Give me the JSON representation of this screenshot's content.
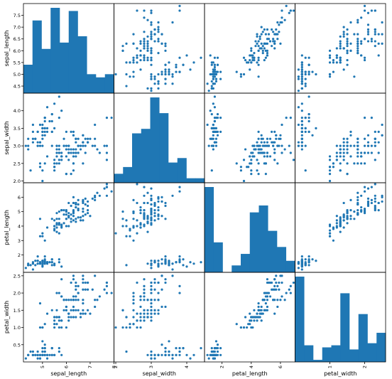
{
  "chart_data": {
    "type": "scatter_matrix",
    "variables": [
      "sepal_length",
      "sepal_width",
      "petal_length",
      "petal_width"
    ],
    "marker_color": "#1f77b4",
    "diagonal": "hist",
    "grid": false,
    "ranges": {
      "sepal_length": [
        4.2,
        8.0
      ],
      "sepal_width": [
        1.95,
        4.5
      ],
      "petal_length": [
        0.8,
        7.0
      ],
      "petal_width": [
        0.0,
        2.6
      ]
    },
    "ticks": {
      "sepal_length": {
        "values": [
          4.5,
          5.0,
          5.5,
          6.0,
          6.5,
          7.0,
          7.5
        ],
        "labels": [
          "4.5",
          "5.0",
          "5.5",
          "6.0",
          "6.5",
          "7.0",
          "7.5"
        ]
      },
      "sepal_width": {
        "values": [
          2.0,
          2.5,
          3.0,
          3.5,
          4.0
        ],
        "labels": [
          "2.0",
          "2.5",
          "3.0",
          "3.5",
          "4.0"
        ]
      },
      "petal_length": {
        "values": [
          2,
          3,
          4,
          5,
          6
        ],
        "labels": [
          "2",
          "3",
          "4",
          "5",
          "6"
        ]
      },
      "petal_width": {
        "values": [
          0.5,
          1.0,
          1.5,
          2.0,
          2.5
        ],
        "labels": [
          "0.5",
          "1.0",
          "1.5",
          "2.0",
          "2.5"
        ]
      }
    },
    "bottom_ticks": {
      "sepal_length": {
        "values": [
          5,
          6,
          7,
          8
        ],
        "labels": [
          "5",
          "6",
          "7",
          "8"
        ]
      },
      "sepal_width": {
        "values": [
          2,
          3,
          4
        ],
        "labels": [
          "2",
          "3",
          "4"
        ]
      },
      "petal_length": {
        "values": [
          2,
          4,
          6
        ],
        "labels": [
          "2",
          "4",
          "6"
        ]
      },
      "petal_width": {
        "values": [
          1,
          2
        ],
        "labels": [
          "1",
          "2"
        ]
      }
    },
    "histograms": {
      "sepal_length": [
        9,
        23,
        14,
        27,
        16,
        26,
        18,
        6,
        5,
        6
      ],
      "sepal_width": [
        4,
        7,
        22,
        24,
        38,
        31,
        9,
        11,
        2,
        2
      ],
      "petal_length": [
        37,
        13,
        0,
        3,
        8,
        26,
        29,
        18,
        11,
        5
      ],
      "petal_width": [
        41,
        8,
        1,
        7,
        8,
        33,
        6,
        23,
        9,
        14
      ]
    },
    "data": {
      "sepal_length": [
        5.1,
        4.9,
        4.7,
        4.6,
        5.0,
        5.4,
        4.6,
        5.0,
        4.4,
        4.9,
        5.4,
        4.8,
        4.8,
        4.3,
        5.8,
        5.7,
        5.4,
        5.1,
        5.7,
        5.1,
        5.4,
        5.1,
        4.6,
        5.1,
        4.8,
        5.0,
        5.0,
        5.2,
        5.2,
        4.7,
        4.8,
        5.4,
        5.2,
        5.5,
        4.9,
        5.0,
        5.5,
        4.9,
        4.4,
        5.1,
        5.0,
        4.5,
        4.4,
        5.0,
        5.1,
        4.8,
        5.1,
        4.6,
        5.3,
        5.0,
        7.0,
        6.4,
        6.9,
        5.5,
        6.5,
        5.7,
        6.3,
        4.9,
        6.6,
        5.2,
        5.0,
        5.9,
        6.0,
        6.1,
        5.6,
        6.7,
        5.6,
        5.8,
        6.2,
        5.6,
        5.9,
        6.1,
        6.3,
        6.1,
        6.4,
        6.6,
        6.8,
        6.7,
        6.0,
        5.7,
        5.5,
        5.5,
        5.8,
        6.0,
        5.4,
        6.0,
        6.7,
        6.3,
        5.6,
        5.5,
        5.5,
        6.1,
        5.8,
        5.0,
        5.6,
        5.7,
        5.7,
        6.2,
        5.1,
        5.7,
        6.3,
        5.8,
        7.1,
        6.3,
        6.5,
        7.6,
        4.9,
        7.3,
        6.7,
        7.2,
        6.5,
        6.4,
        6.8,
        5.7,
        5.8,
        6.4,
        6.5,
        7.7,
        7.7,
        6.0,
        6.9,
        5.6,
        7.7,
        6.3,
        6.7,
        7.2,
        6.2,
        6.1,
        6.4,
        7.2,
        7.4,
        7.9,
        6.4,
        6.3,
        6.1,
        7.7,
        6.3,
        6.4,
        6.0,
        6.9,
        6.7,
        6.9,
        5.8,
        6.8,
        6.7,
        6.7,
        6.3,
        6.5,
        6.2,
        5.9
      ],
      "sepal_width": [
        3.5,
        3.0,
        3.2,
        3.1,
        3.6,
        3.9,
        3.4,
        3.4,
        2.9,
        3.1,
        3.7,
        3.4,
        3.0,
        3.0,
        4.0,
        4.4,
        3.9,
        3.5,
        3.8,
        3.8,
        3.4,
        3.7,
        3.6,
        3.3,
        3.4,
        3.0,
        3.4,
        3.5,
        3.4,
        3.2,
        3.1,
        3.4,
        4.1,
        4.2,
        3.1,
        3.2,
        3.5,
        3.6,
        3.0,
        3.4,
        3.5,
        2.3,
        3.2,
        3.5,
        3.8,
        3.0,
        3.8,
        3.2,
        3.7,
        3.3,
        3.2,
        3.2,
        3.1,
        2.3,
        2.8,
        2.8,
        3.3,
        2.4,
        2.9,
        2.7,
        2.0,
        3.0,
        2.2,
        2.9,
        2.9,
        3.1,
        3.0,
        2.7,
        2.2,
        2.5,
        3.2,
        2.8,
        2.5,
        2.8,
        2.9,
        3.0,
        2.8,
        3.0,
        2.9,
        2.6,
        2.4,
        2.4,
        2.7,
        2.7,
        3.0,
        3.4,
        3.1,
        2.3,
        3.0,
        2.5,
        2.6,
        3.0,
        2.6,
        2.3,
        2.7,
        3.0,
        2.9,
        2.9,
        2.5,
        2.8,
        3.3,
        2.7,
        3.0,
        2.9,
        3.0,
        3.0,
        2.5,
        2.9,
        2.5,
        3.6,
        3.2,
        2.7,
        3.0,
        2.5,
        2.8,
        3.2,
        3.0,
        3.8,
        2.6,
        2.2,
        3.2,
        2.8,
        2.8,
        2.7,
        3.3,
        3.2,
        2.8,
        3.0,
        2.8,
        3.0,
        2.8,
        3.8,
        2.8,
        2.8,
        2.6,
        3.0,
        3.4,
        3.1,
        3.0,
        3.1,
        3.1,
        3.1,
        2.7,
        3.2,
        3.3,
        3.0,
        2.5,
        3.0,
        3.4,
        3.0
      ],
      "petal_length": [
        1.4,
        1.4,
        1.3,
        1.5,
        1.4,
        1.7,
        1.4,
        1.5,
        1.4,
        1.5,
        1.5,
        1.6,
        1.4,
        1.1,
        1.2,
        1.5,
        1.3,
        1.4,
        1.7,
        1.5,
        1.7,
        1.5,
        1.0,
        1.7,
        1.9,
        1.6,
        1.6,
        1.5,
        1.4,
        1.6,
        1.6,
        1.5,
        1.5,
        1.4,
        1.5,
        1.2,
        1.3,
        1.4,
        1.3,
        1.5,
        1.3,
        1.3,
        1.3,
        1.6,
        1.9,
        1.4,
        1.6,
        1.4,
        1.5,
        1.4,
        4.7,
        4.5,
        4.9,
        4.0,
        4.6,
        4.5,
        4.7,
        3.3,
        4.6,
        3.9,
        3.5,
        4.2,
        4.0,
        4.7,
        3.6,
        4.4,
        4.5,
        4.1,
        4.5,
        3.9,
        4.8,
        4.0,
        4.9,
        4.7,
        4.3,
        4.4,
        4.8,
        5.0,
        4.5,
        3.5,
        3.8,
        3.7,
        3.9,
        5.1,
        4.5,
        4.5,
        4.7,
        4.4,
        4.1,
        4.0,
        4.4,
        4.6,
        4.0,
        3.3,
        4.2,
        4.2,
        4.2,
        4.3,
        3.0,
        4.1,
        6.0,
        5.1,
        5.9,
        5.6,
        5.8,
        6.6,
        4.5,
        6.3,
        5.8,
        6.1,
        5.1,
        5.3,
        5.5,
        5.0,
        5.1,
        5.3,
        5.5,
        6.7,
        6.9,
        5.0,
        5.7,
        4.9,
        6.7,
        4.9,
        5.7,
        6.0,
        4.8,
        4.9,
        5.6,
        5.8,
        6.1,
        6.4,
        5.6,
        5.1,
        5.6,
        6.1,
        5.6,
        5.5,
        4.8,
        5.4,
        5.6,
        5.1,
        5.1,
        5.9,
        5.7,
        5.2,
        5.0,
        5.2,
        5.4,
        5.1
      ],
      "petal_width": [
        0.2,
        0.2,
        0.2,
        0.2,
        0.2,
        0.4,
        0.3,
        0.2,
        0.2,
        0.1,
        0.2,
        0.2,
        0.1,
        0.1,
        0.2,
        0.4,
        0.4,
        0.3,
        0.3,
        0.3,
        0.2,
        0.4,
        0.2,
        0.5,
        0.2,
        0.2,
        0.4,
        0.2,
        0.2,
        0.2,
        0.2,
        0.4,
        0.1,
        0.2,
        0.2,
        0.2,
        0.2,
        0.1,
        0.2,
        0.2,
        0.3,
        0.3,
        0.2,
        0.6,
        0.4,
        0.3,
        0.2,
        0.2,
        0.2,
        0.2,
        1.4,
        1.5,
        1.5,
        1.3,
        1.5,
        1.3,
        1.6,
        1.0,
        1.3,
        1.4,
        1.0,
        1.5,
        1.0,
        1.4,
        1.3,
        1.4,
        1.5,
        1.0,
        1.5,
        1.1,
        1.8,
        1.3,
        1.5,
        1.2,
        1.3,
        1.4,
        1.4,
        1.7,
        1.5,
        1.0,
        1.1,
        1.0,
        1.2,
        1.6,
        1.5,
        1.6,
        1.5,
        1.3,
        1.3,
        1.3,
        1.2,
        1.4,
        1.2,
        1.0,
        1.3,
        1.2,
        1.3,
        1.3,
        1.1,
        1.3,
        2.5,
        1.9,
        2.1,
        1.8,
        2.2,
        2.1,
        1.7,
        1.8,
        1.8,
        2.5,
        2.0,
        1.9,
        2.1,
        2.0,
        2.4,
        2.3,
        1.8,
        2.2,
        2.3,
        1.5,
        2.3,
        2.0,
        2.0,
        1.8,
        2.1,
        1.8,
        1.8,
        1.8,
        2.1,
        1.6,
        1.9,
        2.0,
        2.2,
        1.5,
        1.4,
        2.3,
        2.4,
        1.8,
        1.8,
        2.1,
        2.4,
        2.3,
        1.9,
        2.3,
        2.5,
        2.3,
        1.9,
        2.0,
        2.3,
        1.8
      ]
    }
  }
}
